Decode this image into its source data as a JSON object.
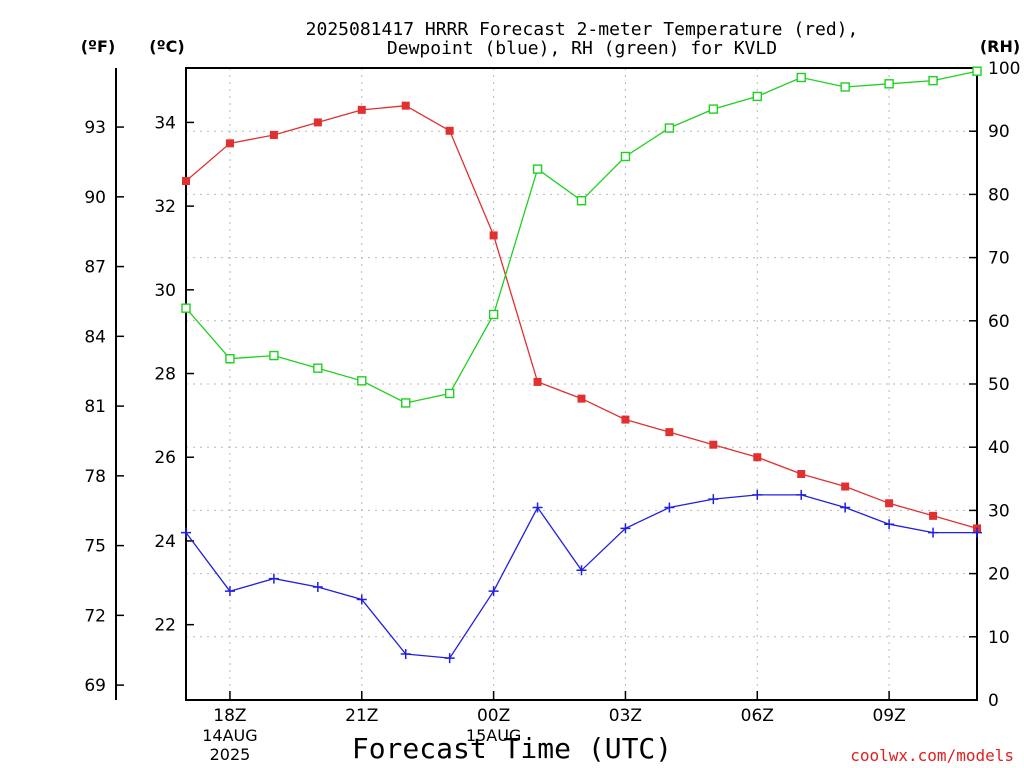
{
  "chart_data": {
    "type": "line",
    "title": "2025081417 HRRR Forecast 2-meter Temperature (red),",
    "subtitle": "Dewpoint (blue), RH (green) for KVLD",
    "xlabel": "Forecast Time (UTC)",
    "credit": "coolwx.com/models",
    "units": {
      "fahrenheit": "(ºF)",
      "celsius": "(ºC)",
      "rh": "(RH)"
    },
    "x_hours": [
      17,
      18,
      19,
      20,
      21,
      22,
      23,
      24,
      25,
      26,
      27,
      28,
      29,
      30,
      31,
      32,
      33,
      34,
      35
    ],
    "x_ticks": [
      {
        "hour": 18,
        "label": "18Z",
        "date1": "14AUG",
        "date2": "2025"
      },
      {
        "hour": 21,
        "label": "21Z"
      },
      {
        "hour": 24,
        "label": "00Z",
        "date1": "15AUG"
      },
      {
        "hour": 27,
        "label": "03Z"
      },
      {
        "hour": 30,
        "label": "06Z"
      },
      {
        "hour": 33,
        "label": "09Z"
      }
    ],
    "xlim": [
      17,
      35
    ],
    "ylim_celsius": [
      20.2,
      35.3
    ],
    "ylim_rh": [
      0,
      100
    ],
    "celsius_ticks": [
      22,
      24,
      26,
      28,
      30,
      32,
      34
    ],
    "fahrenheit_ticks": [
      69,
      72,
      75,
      78,
      81,
      84,
      87,
      90,
      93
    ],
    "rh_ticks": [
      0,
      10,
      20,
      30,
      40,
      50,
      60,
      70,
      80,
      90,
      100
    ],
    "grid": true,
    "series": [
      {
        "color": "#e03030",
        "marker": "filled-square",
        "values": [
          32.6,
          33.5,
          33.7,
          34.0,
          34.3,
          34.4,
          33.8,
          31.3,
          27.8,
          27.4,
          26.9,
          26.6,
          26.3,
          26.0,
          25.6,
          25.3,
          24.9,
          24.6,
          24.3
        ]
      },
      {
        "color": "#2020e0",
        "marker": "plus",
        "values": [
          24.2,
          22.8,
          23.1,
          22.9,
          22.6,
          21.3,
          21.2,
          22.8,
          24.8,
          23.3,
          24.3,
          24.8,
          25.0,
          25.1,
          25.1,
          24.8,
          24.4,
          24.2,
          24.2
        ]
      },
      {
        "color": "#20d020",
        "marker": "open-square",
        "values": [
          62,
          54,
          54.5,
          52.5,
          50.5,
          47,
          48.5,
          61,
          84,
          79,
          86,
          90.5,
          93.5,
          95.5,
          98.5,
          97,
          97.5,
          98,
          99.5
        ]
      }
    ]
  }
}
